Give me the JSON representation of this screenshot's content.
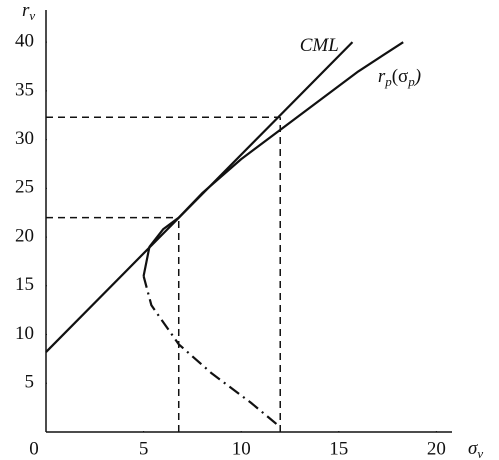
{
  "chart_data": {
    "type": "line",
    "y_label": [
      "r",
      "v"
    ],
    "x_label": [
      "σ",
      "v"
    ],
    "xlim": [
      0,
      20.8
    ],
    "ylim": [
      0,
      43.3
    ],
    "xticks": [
      0,
      5,
      10,
      15,
      20
    ],
    "yticks": [
      5,
      10,
      15,
      20,
      25,
      30,
      35,
      40
    ],
    "series": [
      {
        "color": "#111111",
        "style": "solid",
        "x": [
          0,
          15.7
        ],
        "values": [
          8.2,
          40
        ]
      },
      {
        "color": "#111111",
        "style": "solid",
        "x": [
          5,
          5.3,
          6,
          6.8,
          8,
          10,
          12,
          14,
          16,
          18.3
        ],
        "values": [
          16,
          19,
          20.8,
          22,
          24.5,
          28,
          31,
          34,
          37,
          40
        ]
      },
      {
        "color": "#111111",
        "style": "dashdot",
        "x": [
          5,
          5.4,
          6.8,
          8.5,
          10.5,
          12
        ],
        "values": [
          16,
          13,
          9,
          6,
          3,
          0.5
        ]
      }
    ],
    "reference_points": [
      {
        "x": 6.8,
        "y": 22
      },
      {
        "x": 12,
        "y": 32.3
      }
    ],
    "annotations": [
      {
        "parts": [
          "CML"
        ],
        "x": 13.0,
        "y": 39.5
      },
      {
        "parts": [
          "r",
          "p",
          "(σ",
          "p",
          ")"
        ],
        "x": 17.0,
        "y": 36.3
      }
    ]
  }
}
